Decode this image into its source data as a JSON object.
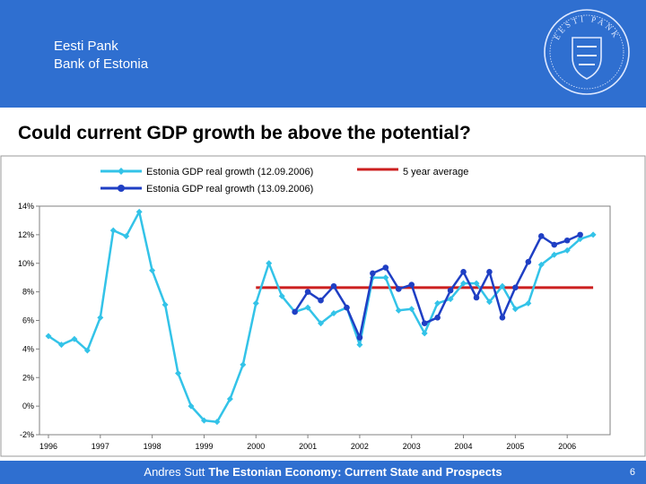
{
  "header": {
    "line1": "Eesti Pank",
    "line2": "Bank of Estonia",
    "seal_text_top": "EESTI PANK",
    "seal_text_bottom": "EESTI PANK",
    "band_color": "#2f6fd0"
  },
  "slide": {
    "title": "Could current GDP growth be above the potential?"
  },
  "footer": {
    "author": "Andres Sutt",
    "subject": "The Estonian Economy: Current State and Prospects",
    "page": "6"
  },
  "chart_data": {
    "type": "line",
    "title": "",
    "xlabel": "",
    "ylabel": "",
    "ylim": [
      -2,
      14
    ],
    "y_ticks": [
      "14%",
      "12%",
      "10%",
      "8%",
      "6%",
      "4%",
      "2%",
      "0%",
      "-2%"
    ],
    "x_ticks": [
      "1996",
      "1997",
      "1998",
      "1999",
      "2000",
      "2001",
      "2002",
      "2003",
      "2004",
      "2005",
      "2006"
    ],
    "x_start": 1996,
    "legend_position": "top",
    "series": [
      {
        "name": "Estonia GDP real growth (12.09.2006)",
        "color": "#33c3e8",
        "marker": "diamond",
        "start_quarter": 0,
        "values": [
          4.9,
          4.3,
          4.7,
          3.9,
          6.2,
          12.3,
          11.9,
          13.6,
          9.5,
          7.1,
          2.3,
          0.0,
          -1.0,
          -1.1,
          0.5,
          2.9,
          7.2,
          10.0,
          7.7,
          6.6,
          6.9,
          5.8,
          6.5,
          6.9,
          4.3,
          9.0,
          9.0,
          6.7,
          6.8,
          5.1,
          7.2,
          7.5,
          8.6,
          8.6,
          7.3,
          8.4,
          6.8,
          7.2,
          9.9,
          10.6,
          10.9,
          11.7,
          12.0
        ]
      },
      {
        "name": "Estonia GDP real growth (13.09.2006)",
        "color": "#1f3fc4",
        "marker": "circle",
        "start_quarter": 19,
        "values": [
          6.6,
          8.0,
          7.4,
          8.4,
          6.9,
          4.8,
          9.3,
          9.7,
          8.2,
          8.5,
          5.8,
          6.2,
          8.1,
          9.4,
          7.6,
          9.4,
          6.2,
          8.3,
          10.1,
          11.9,
          11.3,
          11.6,
          12.0
        ]
      },
      {
        "name": "5 year average",
        "color": "#cc1f1f",
        "marker": "none",
        "start_quarter": 16,
        "values": [
          8.3,
          8.3
        ]
      }
    ],
    "five_year_average_end_quarter": 42
  }
}
